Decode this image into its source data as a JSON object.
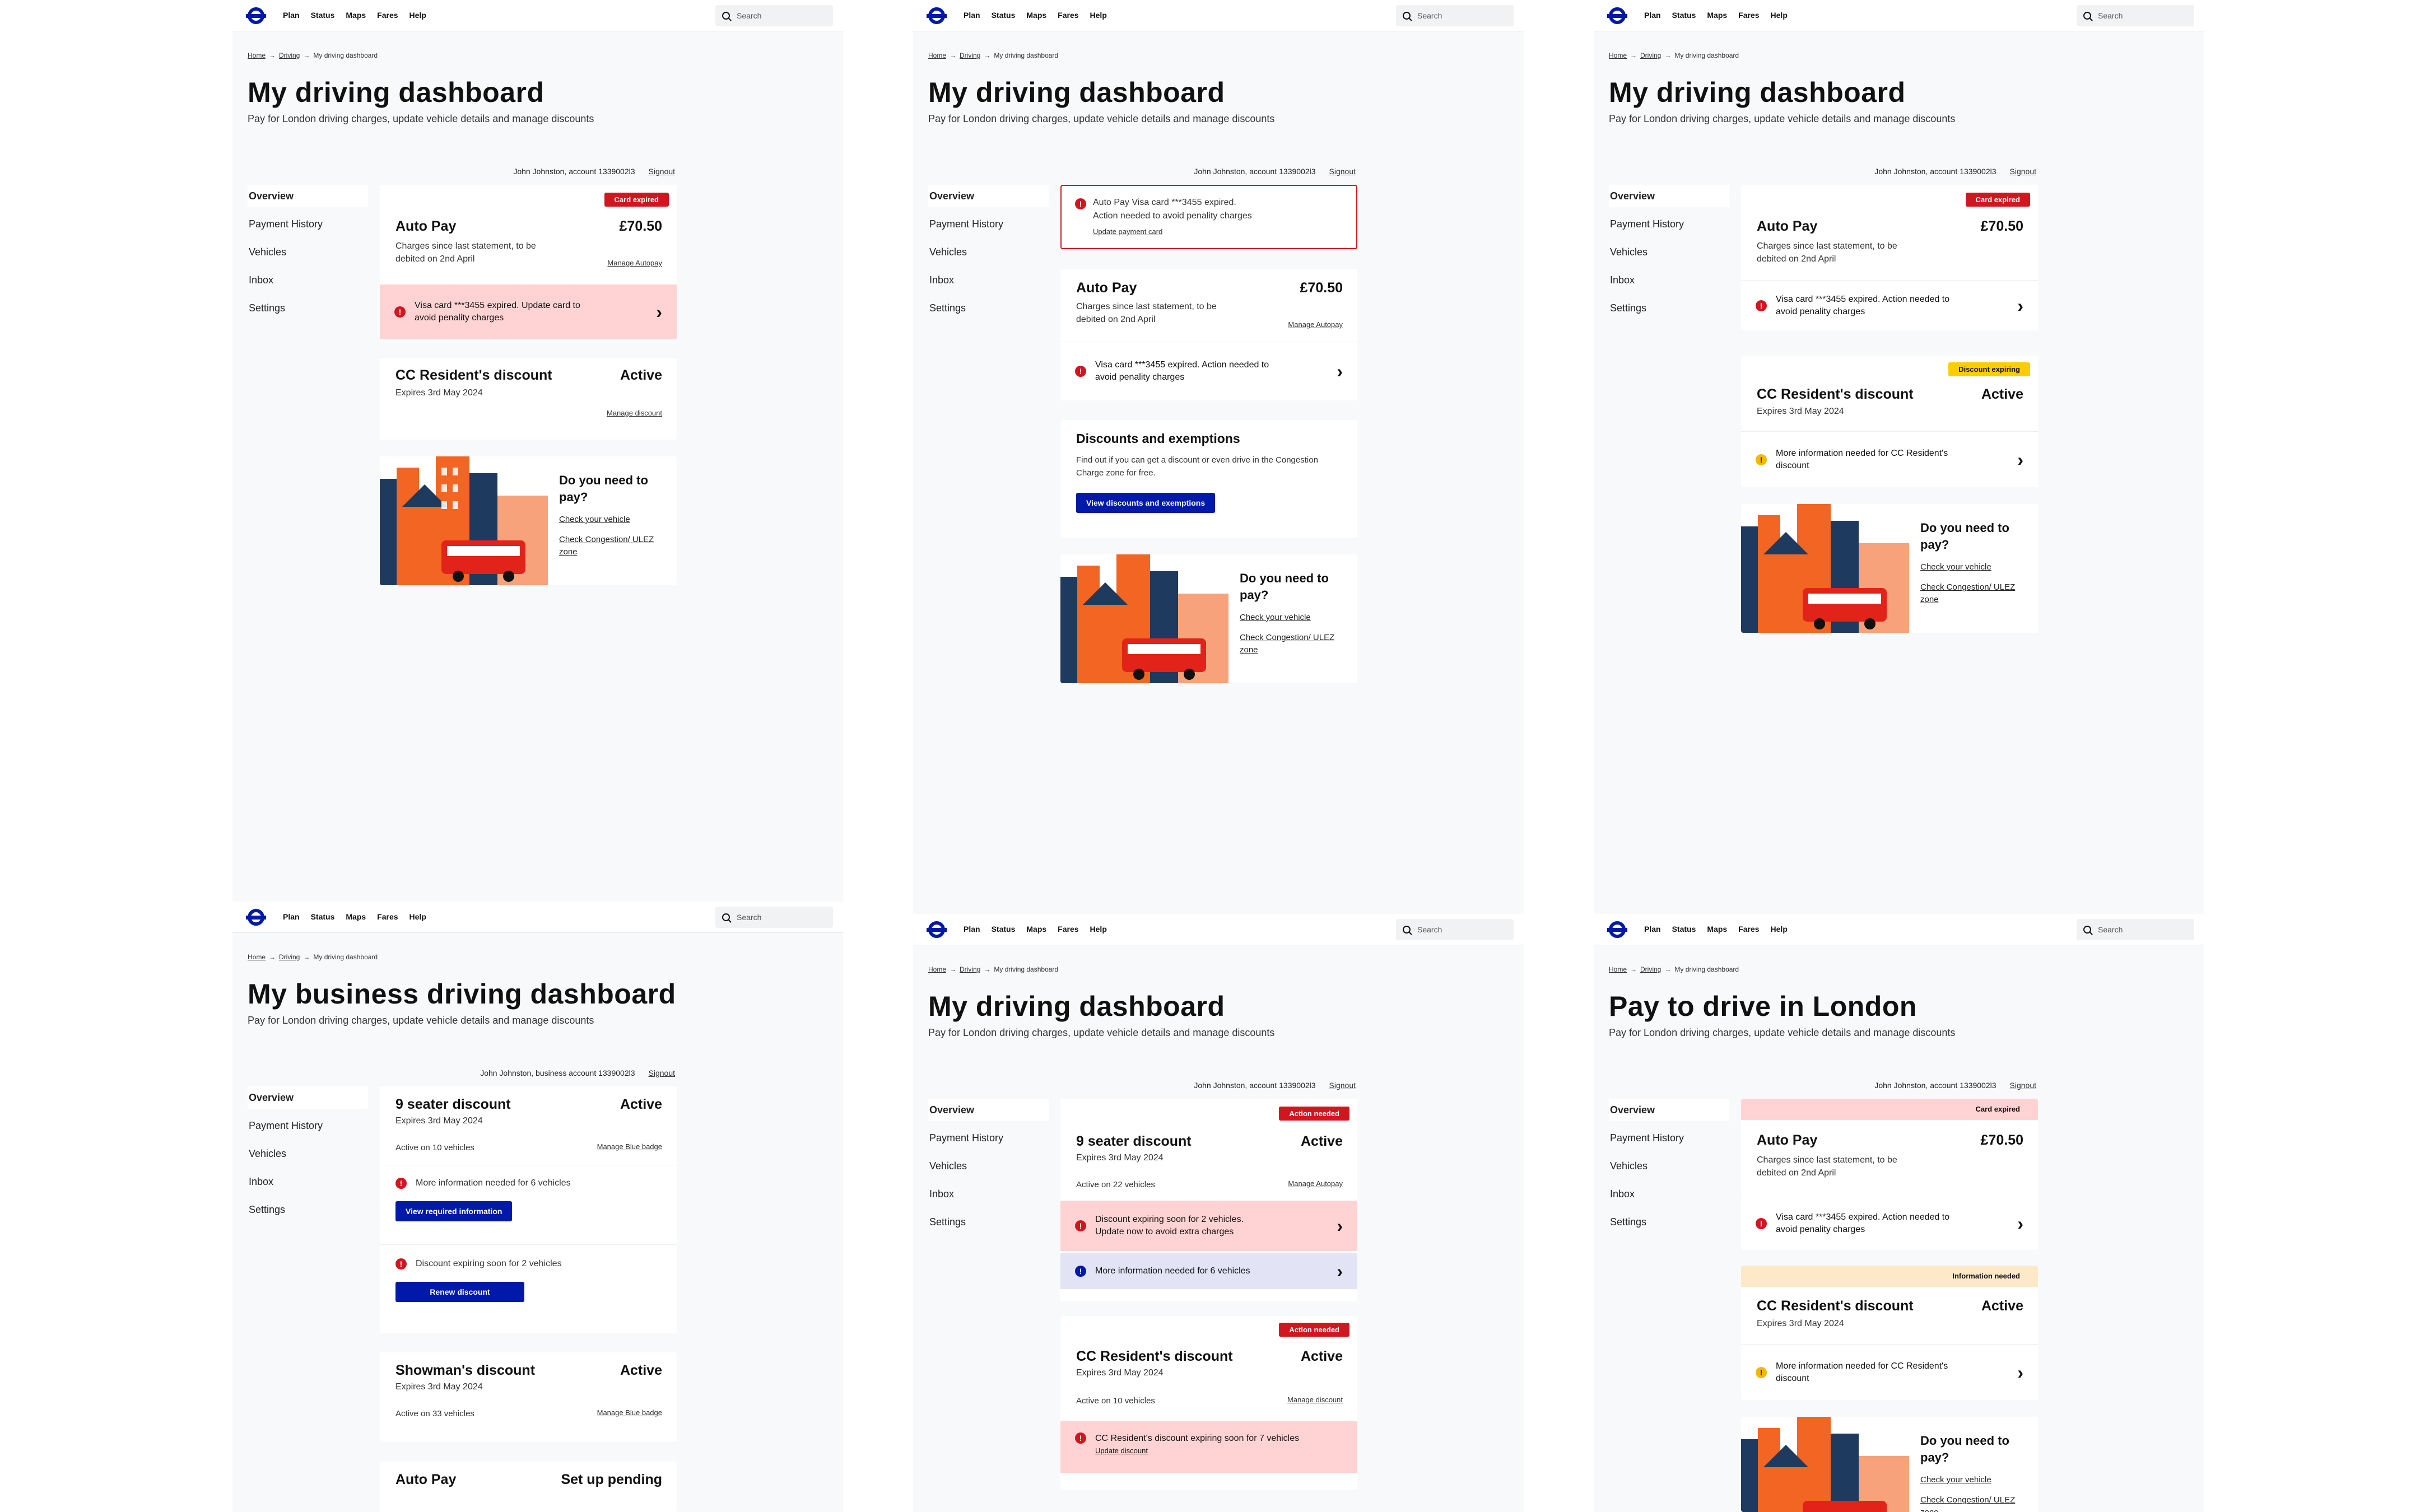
{
  "nav": {
    "items": [
      "Plan",
      "Status",
      "Maps",
      "Fares",
      "Help"
    ],
    "search_placeholder": "Search"
  },
  "crumbs": {
    "home": "Home",
    "driving": "Driving",
    "current": "My driving dashboard"
  },
  "common": {
    "subtitle": "Pay for London driving charges, update vehicle details and manage discounts",
    "account": "John Johnston, account 1339002l3",
    "business_account": "John Johnston, business account 1339002l3",
    "signout": "Signout",
    "sidebar": [
      "Overview",
      "Payment History",
      "Vehicles",
      "Inbox",
      "Settings"
    ],
    "promo": {
      "question": "Do you need to pay?",
      "link1": "Check your vehicle",
      "link2": "Check Congestion/ ULEZ zone"
    }
  },
  "f1": {
    "title": "My driving dashboard",
    "autopay": {
      "badge": "Card expired",
      "title": "Auto Pay",
      "amount": "£70.50",
      "desc": "Charges since last statement, to be debited on 2nd April",
      "link": "Manage Autopay",
      "alert": "Visa card ***3455 expired. Update card to avoid penality charges"
    },
    "discount": {
      "title": "CC Resident's discount",
      "status": "Active",
      "expires": "Expires 3rd May 2024",
      "link": "Manage discount"
    }
  },
  "f2": {
    "title": "My driving dashboard",
    "banner": {
      "line1": "Auto Pay Visa card ***3455 expired.",
      "line2": "Action needed to avoid penality charges",
      "link": "Update payment card"
    },
    "autopay": {
      "title": "Auto Pay",
      "amount": "£70.50",
      "desc": "Charges since last statement, to be debited on 2nd April",
      "link": "Manage Autopay",
      "alert": "Visa card ***3455 expired. Action needed to avoid penality charges"
    },
    "discounts": {
      "title": "Discounts and exemptions",
      "desc": "Find out if you can get a discount or even drive in the Congestion Charge zone for free.",
      "button": "View discounts and exemptions"
    }
  },
  "f3": {
    "title": "My driving dashboard",
    "autopay": {
      "badge": "Card expired",
      "title": "Auto Pay",
      "amount": "£70.50",
      "desc": "Charges since last statement, to be debited on 2nd April",
      "alert": "Visa card ***3455 expired. Action needed to avoid penality charges"
    },
    "discount": {
      "badge": "Discount expiring",
      "title": "CC Resident's discount",
      "status": "Active",
      "expires": "Expires 3rd May 2024",
      "alert": "More information needed for CC Resident's discount"
    }
  },
  "f4": {
    "title": "My business driving dashboard",
    "seater": {
      "title": "9 seater discount",
      "status": "Active",
      "expires": "Expires 3rd May 2024",
      "active_on": "Active on 10 vehicles",
      "link": "Manage Blue badge",
      "alert1": "More information needed for 6 vehicles",
      "button1": "View required information",
      "alert2": "Discount expiring soon for 2 vehicles",
      "button2": "Renew discount"
    },
    "showman": {
      "title": "Showman's discount",
      "status": "Active",
      "expires": "Expires 3rd May 2024",
      "active_on": "Active on 33 vehicles",
      "link": "Manage Blue badge"
    },
    "autopay": {
      "title": "Auto Pay",
      "status": "Set up pending"
    }
  },
  "f5": {
    "title": "My driving dashboard",
    "seater": {
      "badge": "Action needed",
      "title": "9 seater discount",
      "status": "Active",
      "expires": "Expires 3rd May 2024",
      "active_on": "Active on 22 vehicles",
      "link": "Manage Autopay",
      "alert1": "Discount expiring soon for 2 vehicles. Update now to avoid extra charges",
      "alert2": "More information needed for 6 vehicles"
    },
    "resident": {
      "badge": "Action needed",
      "title": "CC Resident's discount",
      "status": "Active",
      "expires": "Expires 3rd May 2024",
      "active_on": "Active on 10 vehicles",
      "link": "Manage discount",
      "alert": "CC Resident's discount expiring soon for 7 vehicles",
      "alert_link": "Update discount"
    }
  },
  "f6": {
    "title": "Pay to drive in London",
    "autopay": {
      "badge": "Card expired",
      "title": "Auto Pay",
      "amount": "£70.50",
      "desc": "Charges since last statement, to be debited on 2nd April",
      "alert": "Visa card ***3455 expired. Action needed to avoid penality charges"
    },
    "discount": {
      "badge": "Information needed",
      "title": "CC Resident's discount",
      "status": "Active",
      "expires": "Expires 3rd May 2024",
      "alert": "More information needed for CC Resident's discount"
    }
  },
  "colors": {
    "brand": "#0019a8",
    "danger": "#d1161f",
    "alert_bg": "#ffd3d3",
    "warning": "#ffcc00"
  },
  "icons": [
    "roundel-logo-icon",
    "search-icon",
    "alert-icon",
    "chevron-right-icon",
    "city-illustration"
  ]
}
